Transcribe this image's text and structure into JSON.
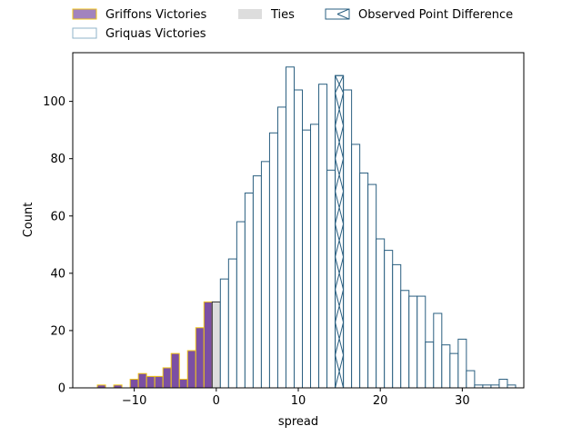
{
  "chart_data": {
    "type": "bar",
    "title": "",
    "xlabel": "spread",
    "ylabel": "Count",
    "xlim": [
      -17.5,
      37.5
    ],
    "ylim": [
      0,
      117
    ],
    "x_ticks": [
      -10,
      0,
      10,
      20,
      30
    ],
    "y_ticks": [
      0,
      20,
      40,
      60,
      80,
      100
    ],
    "x_tick_labels": [
      "−10",
      "0",
      "10",
      "20",
      "30"
    ],
    "y_tick_labels": [
      "0",
      "20",
      "40",
      "60",
      "80",
      "100"
    ],
    "bin_width": 1,
    "legend": {
      "placement": "top-center-outside",
      "entries": [
        {
          "key": "griffons",
          "label": "Griffons Victories"
        },
        {
          "key": "ties",
          "label": "Ties"
        },
        {
          "key": "observed",
          "label": "Observed Point Difference"
        },
        {
          "key": "griquas",
          "label": "Griquas Victories"
        }
      ]
    },
    "series": [
      {
        "name": "Griffons Victories",
        "key": "griffons",
        "fill": "#7b4fa3",
        "edge": "#f0c61a",
        "bins": [
          {
            "x": -14,
            "count": 1
          },
          {
            "x": -12,
            "count": 1
          },
          {
            "x": -10,
            "count": 3
          },
          {
            "x": -9,
            "count": 5
          },
          {
            "x": -8,
            "count": 4
          },
          {
            "x": -7,
            "count": 4
          },
          {
            "x": -6,
            "count": 7
          },
          {
            "x": -5,
            "count": 12
          },
          {
            "x": -4,
            "count": 3
          },
          {
            "x": -3,
            "count": 13
          },
          {
            "x": -2,
            "count": 21
          },
          {
            "x": -1,
            "count": 30
          }
        ]
      },
      {
        "name": "Ties",
        "key": "ties",
        "fill": "#dddddd",
        "edge": "#333333",
        "bins": [
          {
            "x": 0,
            "count": 30
          }
        ]
      },
      {
        "name": "Griquas Victories",
        "key": "griquas",
        "fill": "#ffffff",
        "edge": "#2a5f80",
        "bins": [
          {
            "x": 1,
            "count": 38
          },
          {
            "x": 2,
            "count": 45
          },
          {
            "x": 3,
            "count": 58
          },
          {
            "x": 4,
            "count": 68
          },
          {
            "x": 5,
            "count": 74
          },
          {
            "x": 6,
            "count": 79
          },
          {
            "x": 7,
            "count": 89
          },
          {
            "x": 8,
            "count": 98
          },
          {
            "x": 9,
            "count": 112
          },
          {
            "x": 10,
            "count": 104
          },
          {
            "x": 11,
            "count": 90
          },
          {
            "x": 12,
            "count": 92
          },
          {
            "x": 13,
            "count": 106
          },
          {
            "x": 14,
            "count": 76
          },
          {
            "x": 15,
            "count": 109
          },
          {
            "x": 16,
            "count": 104
          },
          {
            "x": 17,
            "count": 85
          },
          {
            "x": 18,
            "count": 75
          },
          {
            "x": 19,
            "count": 71
          },
          {
            "x": 20,
            "count": 52
          },
          {
            "x": 21,
            "count": 48
          },
          {
            "x": 22,
            "count": 43
          },
          {
            "x": 23,
            "count": 34
          },
          {
            "x": 24,
            "count": 32
          },
          {
            "x": 25,
            "count": 32
          },
          {
            "x": 26,
            "count": 16
          },
          {
            "x": 27,
            "count": 26
          },
          {
            "x": 28,
            "count": 15
          },
          {
            "x": 29,
            "count": 12
          },
          {
            "x": 30,
            "count": 17
          },
          {
            "x": 31,
            "count": 6
          },
          {
            "x": 32,
            "count": 1
          },
          {
            "x": 33,
            "count": 1
          },
          {
            "x": 34,
            "count": 1
          },
          {
            "x": 35,
            "count": 3
          },
          {
            "x": 36,
            "count": 1
          }
        ]
      }
    ],
    "observed_point_difference": {
      "x": 15,
      "hatch": "x",
      "edge": "#2a5f80"
    }
  }
}
